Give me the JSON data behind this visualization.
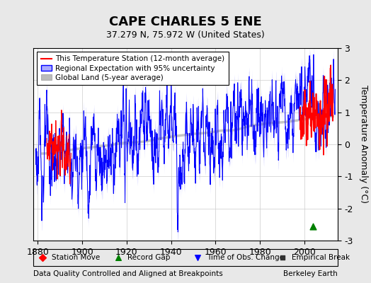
{
  "title": "CAPE CHARLES 5 ENE",
  "subtitle": "37.279 N, 75.972 W (United States)",
  "ylabel": "Temperature Anomaly (°C)",
  "xlabel_left": "Data Quality Controlled and Aligned at Breakpoints",
  "xlabel_right": "Berkeley Earth",
  "ylim": [
    -3,
    3
  ],
  "xlim": [
    1878,
    2015
  ],
  "xticks": [
    1880,
    1900,
    1920,
    1940,
    1960,
    1980,
    2000
  ],
  "yticks": [
    -3,
    -2,
    -1,
    0,
    1,
    2,
    3
  ],
  "bg_color": "#e8e8e8",
  "plot_bg_color": "#ffffff",
  "grid_color": "#cccccc",
  "regional_line_color": "#0000ff",
  "regional_fill_color": "#aaaaff",
  "station_color": "#ff0000",
  "global_land_color": "#bbbbbb",
  "record_gap_marker_x": 2004,
  "record_gap_marker_y": -2.55,
  "red_data_start_year": 1998
}
